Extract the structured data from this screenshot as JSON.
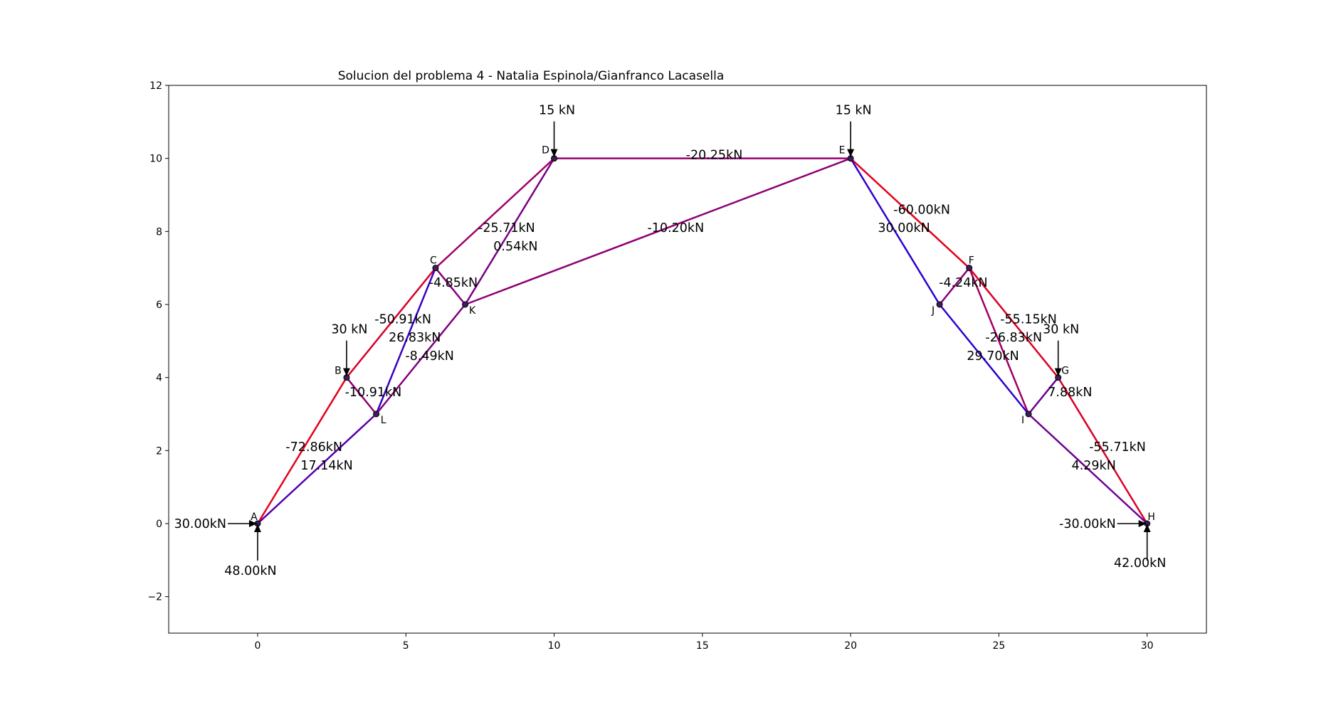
{
  "chart_data": {
    "type": "truss",
    "title": "Solucion del problema 4 - Natalia Espinola/Gianfranco Lacasella",
    "xlim": [
      -3,
      32
    ],
    "ylim": [
      -3,
      12
    ],
    "xticks": [
      0,
      5,
      10,
      15,
      20,
      25,
      30
    ],
    "yticks": [
      -2,
      0,
      2,
      4,
      6,
      8,
      10,
      12
    ],
    "tick_labels_x": [
      "0",
      "5",
      "10",
      "15",
      "20",
      "25",
      "30"
    ],
    "tick_labels_y": [
      "−2",
      "0",
      "2",
      "4",
      "6",
      "8",
      "10",
      "12"
    ],
    "nodes": [
      {
        "name": "A",
        "x": 0,
        "y": 0
      },
      {
        "name": "B",
        "x": 3,
        "y": 4
      },
      {
        "name": "C",
        "x": 6,
        "y": 7
      },
      {
        "name": "D",
        "x": 10,
        "y": 10
      },
      {
        "name": "E",
        "x": 20,
        "y": 10
      },
      {
        "name": "F",
        "x": 24,
        "y": 7
      },
      {
        "name": "G",
        "x": 27,
        "y": 4
      },
      {
        "name": "H",
        "x": 30,
        "y": 0
      },
      {
        "name": "I",
        "x": 26,
        "y": 3
      },
      {
        "name": "J",
        "x": 23,
        "y": 6
      },
      {
        "name": "K",
        "x": 7,
        "y": 6
      },
      {
        "name": "L",
        "x": 4,
        "y": 3
      }
    ],
    "members": [
      {
        "from": "A",
        "to": "B",
        "force": -72.86,
        "label": "-72.86kN",
        "color": "#e5001a",
        "lx": 1.9,
        "ly": 2.1
      },
      {
        "from": "A",
        "to": "L",
        "force": 17.14,
        "label": "17.14kN",
        "color": "#5700ac",
        "lx": 2.33,
        "ly": 1.6
      },
      {
        "from": "B",
        "to": "C",
        "force": -50.91,
        "label": "-50.91kN",
        "color": "#d80028",
        "lx": 4.9,
        "ly": 5.6
      },
      {
        "from": "B",
        "to": "L",
        "force": -10.91,
        "label": "-10.91kN",
        "color": "#8e0071",
        "lx": 3.9,
        "ly": 3.6
      },
      {
        "from": "C",
        "to": "L",
        "force": 26.83,
        "label": "26.83kN",
        "color": "#3a00c5",
        "lx": 5.3,
        "ly": 5.1
      },
      {
        "from": "L",
        "to": "K",
        "force": -8.49,
        "label": "-8.49kN",
        "color": "#800080",
        "lx": 5.8,
        "ly": 4.6
      },
      {
        "from": "C",
        "to": "D",
        "force": -25.71,
        "label": "-25.71kN",
        "color": "#a0006a",
        "lx": 8.4,
        "ly": 8.1
      },
      {
        "from": "C",
        "to": "K",
        "force": -4.85,
        "label": "-4.85kN",
        "color": "#86007a",
        "lx": 6.6,
        "ly": 6.6
      },
      {
        "from": "K",
        "to": "D",
        "force": 0.54,
        "label": "0.54kN",
        "color": "#7a0086",
        "lx": 8.7,
        "ly": 7.6
      },
      {
        "from": "D",
        "to": "E",
        "force": -20.25,
        "label": "-20.25kN",
        "color": "#960070",
        "lx": 15.4,
        "ly": 10.1
      },
      {
        "from": "K",
        "to": "E",
        "force": -10.2,
        "label": "-10.20kN",
        "color": "#8c0076",
        "lx": 14.1,
        "ly": 8.1
      },
      {
        "from": "E",
        "to": "F",
        "force": -60.0,
        "label": "-60.00kN",
        "color": "#e5001a",
        "lx": 22.4,
        "ly": 8.6
      },
      {
        "from": "E",
        "to": "J",
        "force": 30.0,
        "label": "30.00kN",
        "color": "#2e00d1",
        "lx": 21.8,
        "ly": 8.1
      },
      {
        "from": "F",
        "to": "J",
        "force": -4.24,
        "label": "-4.24kN",
        "color": "#86007a",
        "lx": 23.8,
        "ly": 6.6
      },
      {
        "from": "F",
        "to": "G",
        "force": -55.15,
        "label": "-55.15kN",
        "color": "#db0024",
        "lx": 26.0,
        "ly": 5.6
      },
      {
        "from": "F",
        "to": "I",
        "force": -26.83,
        "label": "-26.83kN",
        "color": "#a00062",
        "lx": 25.5,
        "ly": 5.1
      },
      {
        "from": "J",
        "to": "I",
        "force": 29.7,
        "label": "29.70kN",
        "color": "#2f00d0",
        "lx": 24.8,
        "ly": 4.6
      },
      {
        "from": "I",
        "to": "G",
        "force": 7.88,
        "label": "7.88kN",
        "color": "#6a0096",
        "lx": 27.4,
        "ly": 3.6
      },
      {
        "from": "G",
        "to": "H",
        "force": -55.71,
        "label": "-55.71kN",
        "color": "#db0024",
        "lx": 29.0,
        "ly": 2.1
      },
      {
        "from": "I",
        "to": "H",
        "force": 4.29,
        "label": "4.29kN",
        "color": "#6d0092",
        "lx": 28.2,
        "ly": 1.6
      }
    ],
    "loads": [
      {
        "node": "D",
        "label": "15 kN",
        "direction": "down"
      },
      {
        "node": "E",
        "label": "15 kN",
        "direction": "down"
      },
      {
        "node": "B",
        "label": "30 kN",
        "direction": "down"
      },
      {
        "node": "G",
        "label": "30 kN",
        "direction": "down"
      }
    ],
    "reactions": [
      {
        "node": "A",
        "label": "30.00kN",
        "direction": "right"
      },
      {
        "node": "A",
        "label": "48.00kN",
        "direction": "up"
      },
      {
        "node": "H",
        "label": "-30.00kN",
        "direction": "right"
      },
      {
        "node": "H",
        "label": "42.00kN",
        "direction": "up"
      }
    ]
  }
}
